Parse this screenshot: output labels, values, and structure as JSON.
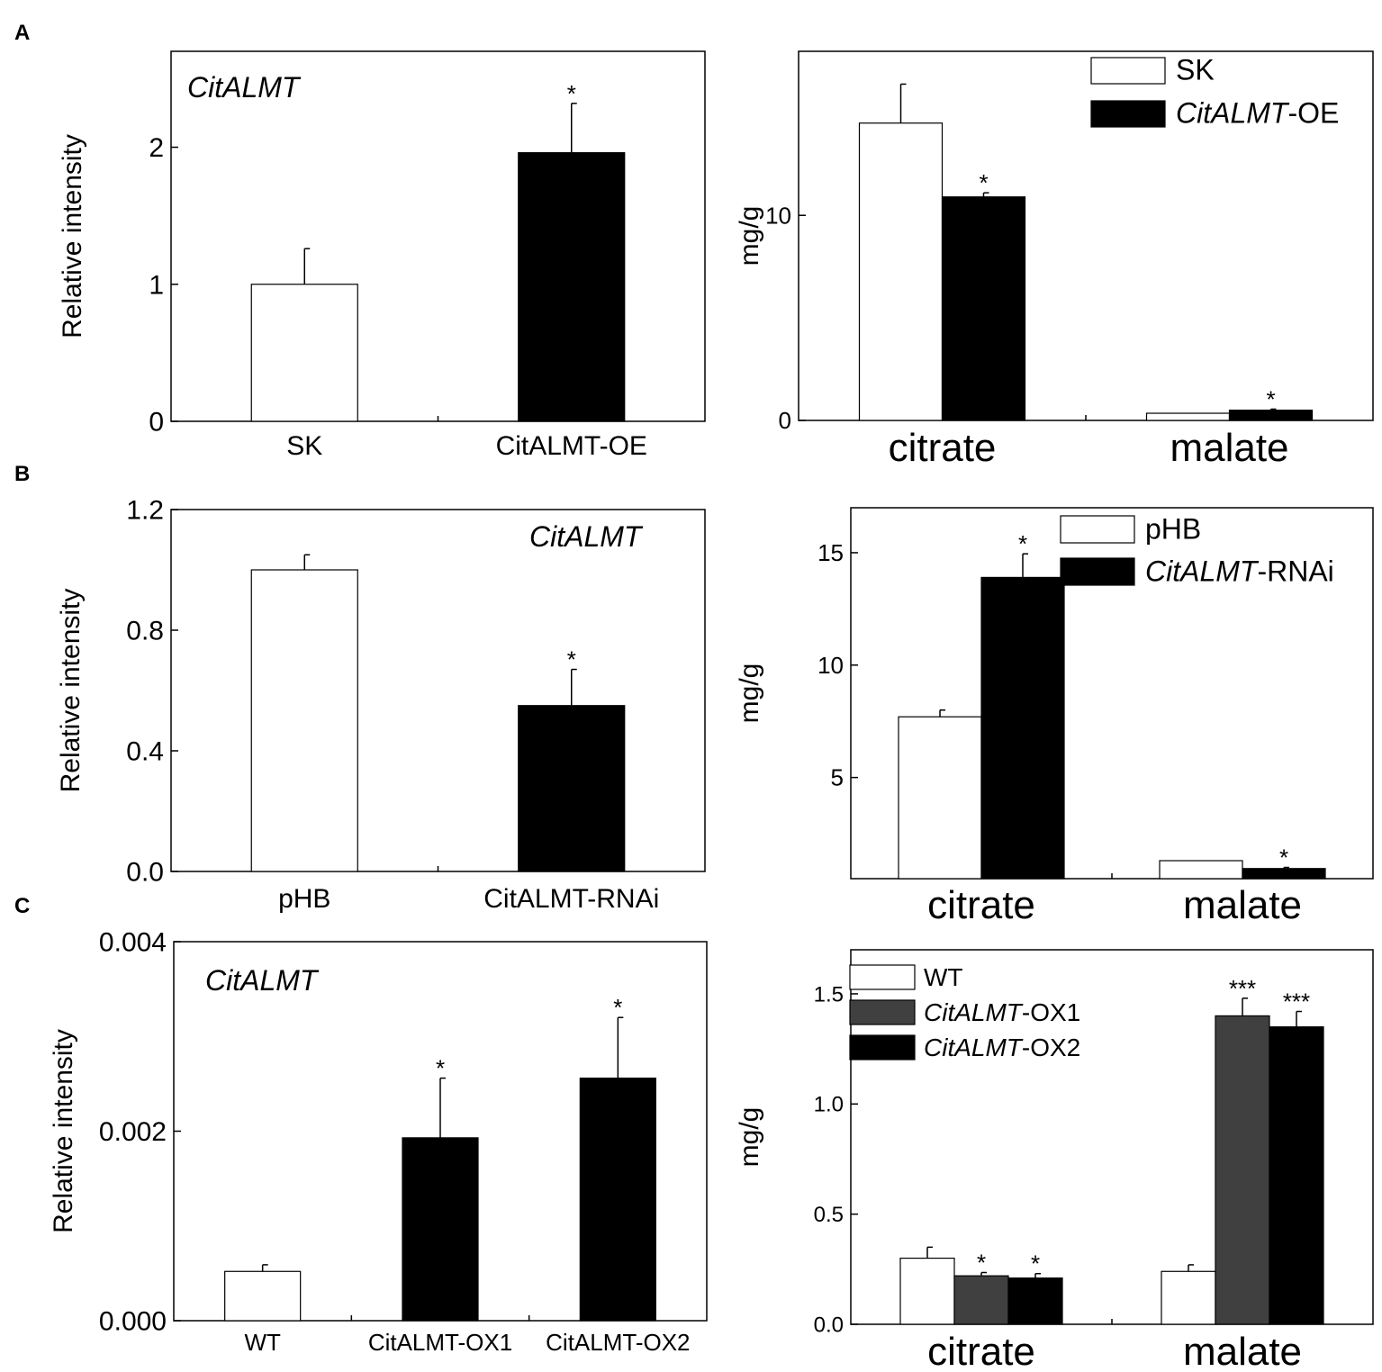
{
  "panel_labels": [
    "A",
    "B",
    "C"
  ],
  "chart_data": [
    {
      "panel": "A",
      "type": "bar",
      "annotation": "CitALMT",
      "ylabel": "Relative intensity",
      "xlabel": "",
      "categories": [
        "SK",
        "CitALMT-OE"
      ],
      "values": [
        1.0,
        1.96
      ],
      "errors": [
        0.26,
        0.36
      ],
      "colors": [
        "#ffffff",
        "#000000"
      ],
      "significance": [
        "",
        "*"
      ],
      "ylim": [
        0,
        2.7
      ],
      "yticks": [
        0,
        1,
        2
      ],
      "yticklabels": [
        "0",
        "1",
        "2"
      ],
      "grid": false
    },
    {
      "panel": "A",
      "type": "bar",
      "ylabel": "mg/g",
      "xlabel": "",
      "categories": [
        "citrate",
        "malate"
      ],
      "series": [
        {
          "name": "SK",
          "color": "#ffffff",
          "values": [
            14.5,
            0.35
          ],
          "errors": [
            1.9,
            0.0
          ],
          "significance": [
            "",
            ""
          ]
        },
        {
          "name": "CitALMT-OE",
          "color": "#000000",
          "values": [
            10.9,
            0.5
          ],
          "errors": [
            0.2,
            0.05
          ],
          "significance": [
            "*",
            "*"
          ]
        }
      ],
      "legend_position": "top-right",
      "ylim": [
        0,
        18
      ],
      "yticks": [
        0,
        10
      ],
      "yticklabels": [
        "0",
        "10"
      ],
      "grid": false
    },
    {
      "panel": "B",
      "type": "bar",
      "annotation": "CitALMT",
      "ylabel": "Relative intensity",
      "xlabel": "",
      "categories": [
        "pHB",
        "CitALMT-RNAi"
      ],
      "values": [
        1.0,
        0.55
      ],
      "errors": [
        0.05,
        0.12
      ],
      "colors": [
        "#ffffff",
        "#000000"
      ],
      "significance": [
        "",
        "*"
      ],
      "ylim": [
        0,
        1.2
      ],
      "yticks": [
        0.0,
        0.4,
        0.8,
        1.2
      ],
      "yticklabels": [
        "0.0",
        "0.4",
        "0.8",
        "1.2"
      ],
      "grid": false
    },
    {
      "panel": "B",
      "type": "bar",
      "ylabel": "mg/g",
      "xlabel": "",
      "categories": [
        "citrate",
        "malate"
      ],
      "series": [
        {
          "name": "pHB",
          "color": "#ffffff",
          "values": [
            7.7,
            1.3
          ],
          "errors": [
            0.3,
            0.0
          ],
          "significance": [
            "",
            ""
          ]
        },
        {
          "name": "CitALMT-RNAi",
          "color": "#000000",
          "values": [
            13.9,
            0.95
          ],
          "errors": [
            1.05,
            0.05
          ],
          "significance": [
            "*",
            "*"
          ]
        }
      ],
      "legend_position": "top-right",
      "ylim": [
        0.5,
        17
      ],
      "yticks": [
        5,
        10,
        15
      ],
      "yticklabels": [
        "5",
        "10",
        "15"
      ],
      "grid": false
    },
    {
      "panel": "C",
      "type": "bar",
      "annotation": "CitALMT",
      "ylabel": "Relative intensity",
      "xlabel": "",
      "categories": [
        "WT",
        "CitALMT-OX1",
        "CitALMT-OX2"
      ],
      "values": [
        0.00052,
        0.00193,
        0.00256
      ],
      "errors": [
        7e-05,
        0.00063,
        0.00064
      ],
      "colors": [
        "#ffffff",
        "#000000",
        "#000000"
      ],
      "significance": [
        "",
        "*",
        "*"
      ],
      "ylim": [
        0,
        0.004
      ],
      "yticks": [
        0.0,
        0.002,
        0.004
      ],
      "yticklabels": [
        "0.000",
        "0.002",
        "0.004"
      ],
      "grid": false
    },
    {
      "panel": "C",
      "type": "bar",
      "ylabel": "mg/g",
      "xlabel": "",
      "categories": [
        "citrate",
        "malate"
      ],
      "series": [
        {
          "name": "WT",
          "color": "#ffffff",
          "values": [
            0.3,
            0.24
          ],
          "errors": [
            0.05,
            0.03
          ],
          "significance": [
            "",
            ""
          ]
        },
        {
          "name": "CitALMT-OX1",
          "color": "#404040",
          "values": [
            0.22,
            1.4
          ],
          "errors": [
            0.015,
            0.08
          ],
          "significance": [
            "*",
            "***"
          ]
        },
        {
          "name": "CitALMT-OX2",
          "color": "#000000",
          "values": [
            0.21,
            1.35
          ],
          "errors": [
            0.02,
            0.07
          ],
          "significance": [
            "*",
            "***"
          ]
        }
      ],
      "legend_position": "top-left",
      "ylim": [
        0,
        1.7
      ],
      "yticks": [
        0.0,
        0.5,
        1.0,
        1.5
      ],
      "yticklabels": [
        "0.0",
        "0.5",
        "1.0",
        "1.5"
      ],
      "grid": false
    }
  ]
}
